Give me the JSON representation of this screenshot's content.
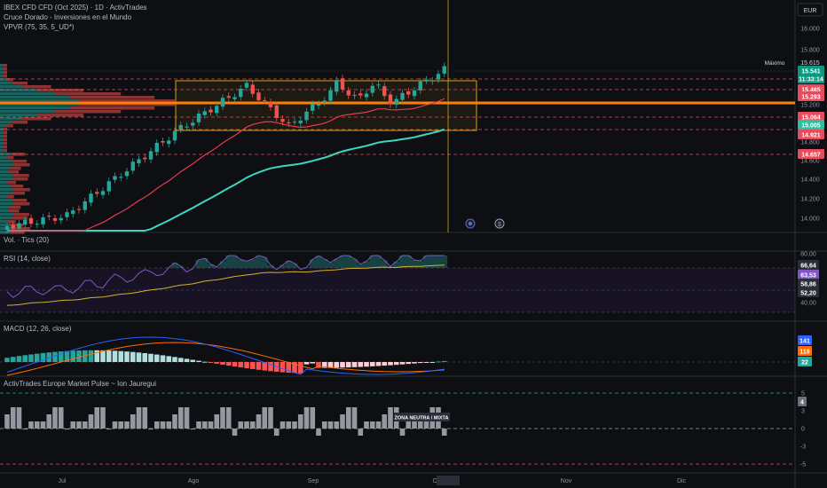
{
  "header": {
    "title": "IBEX CFD CFD (Oct 2025) · 1D · ActivTrades",
    "indicator_cruce": "Cruce Dorado - Inversiones en el Mundo",
    "indicator_vpvr": "VPVR (75, 35, 5_UD*)",
    "currency": "EUR"
  },
  "indicators": {
    "vol": "Vol. · Tics (20)",
    "rsi": "RSI (14, close)",
    "macd": "MACD (12, 26, close)",
    "pulse": "ActivTrades Europe Market Pulse ~ Ion Jauregui",
    "pulse_zone": "ZONA NEUTRA / MIXTA"
  },
  "price_axis": {
    "ticks": [
      "16.000",
      "15.800",
      "15.200",
      "14.800",
      "14.600",
      "14.400",
      "14.200",
      "14.000"
    ],
    "maximo_label": "Máximo",
    "maximo_value": "15.615",
    "tags": [
      {
        "text": "15.541",
        "color": "#089981"
      },
      {
        "text": "11:33:14",
        "color": "#089981"
      },
      {
        "text": "15.465",
        "color": "#e74c5c"
      },
      {
        "text": "15.293",
        "color": "#e74c5c"
      },
      {
        "text": "15.064",
        "color": "#e74c5c"
      },
      {
        "text": "15.005",
        "color": "#2fbfa0"
      },
      {
        "text": "14.921",
        "color": "#e74c5c"
      },
      {
        "text": "14.657",
        "color": "#e74c5c"
      }
    ]
  },
  "rsi_axis": {
    "ticks": [
      "80,00",
      "40,00"
    ],
    "tags": [
      {
        "text": "66,64",
        "color": "#2a2e39"
      },
      {
        "text": "63,53",
        "color": "#7e57c2"
      },
      {
        "text": "58,86",
        "color": "#2a2e39"
      },
      {
        "text": "52,20",
        "color": "#2a2e39"
      }
    ]
  },
  "macd_axis": {
    "tags": [
      {
        "text": "141",
        "color": "#2962ff"
      },
      {
        "text": "119",
        "color": "#ff6d00"
      },
      {
        "text": "22",
        "color": "#26a69a"
      }
    ]
  },
  "pulse_axis": {
    "ticks": [
      "5",
      "3",
      "0",
      "-3",
      "-5"
    ],
    "tags": [
      {
        "text": "4",
        "color": "#6b6f78"
      }
    ]
  },
  "time_axis": [
    "Jul",
    "Ago",
    "Sep",
    "Oct",
    "Nov",
    "Dic"
  ],
  "colors": {
    "bull": "#26a69a",
    "bear": "#ef5350",
    "ema_fast": "#e8384f",
    "ema_slow": "#3dd6c0",
    "box": "#d4a017",
    "orange_line": "#ff7f00"
  }
}
